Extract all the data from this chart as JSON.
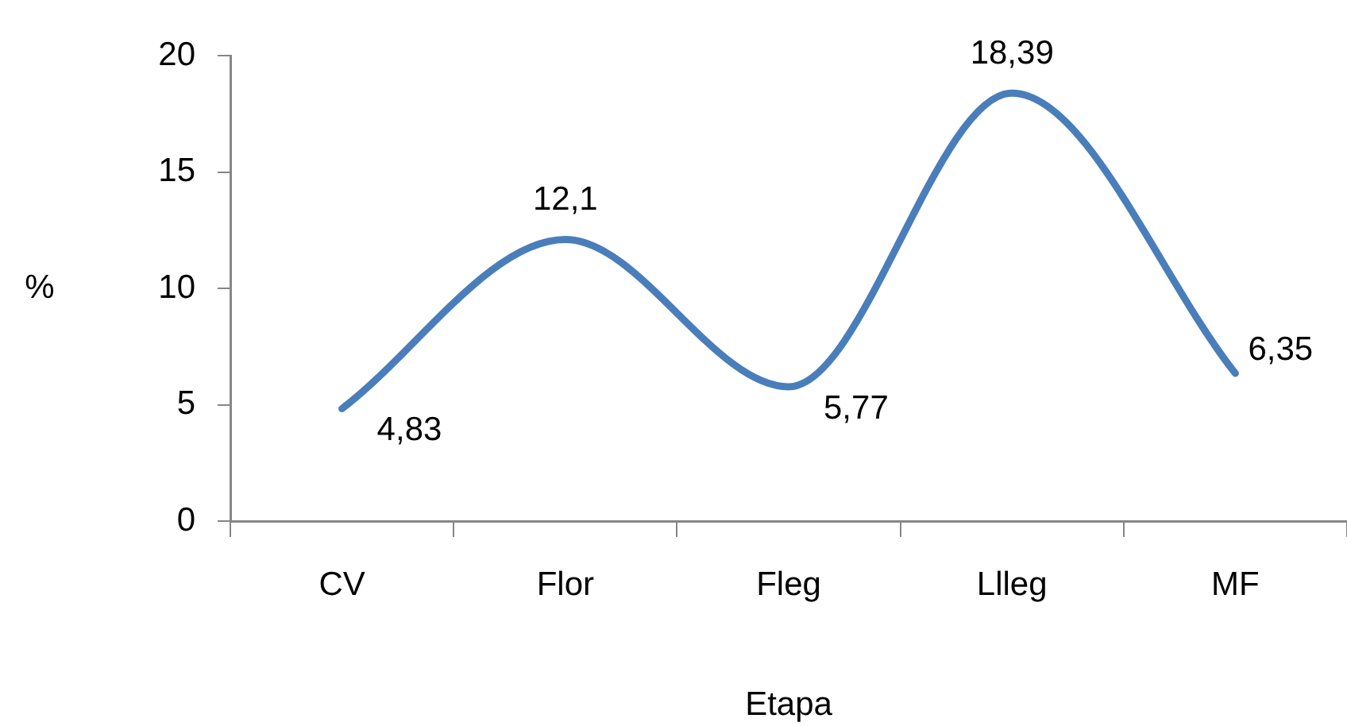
{
  "chart_data": {
    "type": "line",
    "xlabel": "Etapa",
    "ylabel": "%",
    "categories": [
      "CV",
      "Flor",
      "Fleg",
      "Llleg",
      "MF"
    ],
    "series": [
      {
        "color": "#4a7ebb",
        "values": [
          4.83,
          12.1,
          5.77,
          18.39,
          6.35
        ],
        "value_labels": [
          "4,83",
          "12,1",
          "5,77",
          "18,39",
          "6,35"
        ]
      }
    ],
    "ylim": [
      0,
      20
    ],
    "yticks": [
      0,
      5,
      10,
      15,
      20
    ],
    "marker": "none",
    "line_style": "solid"
  }
}
